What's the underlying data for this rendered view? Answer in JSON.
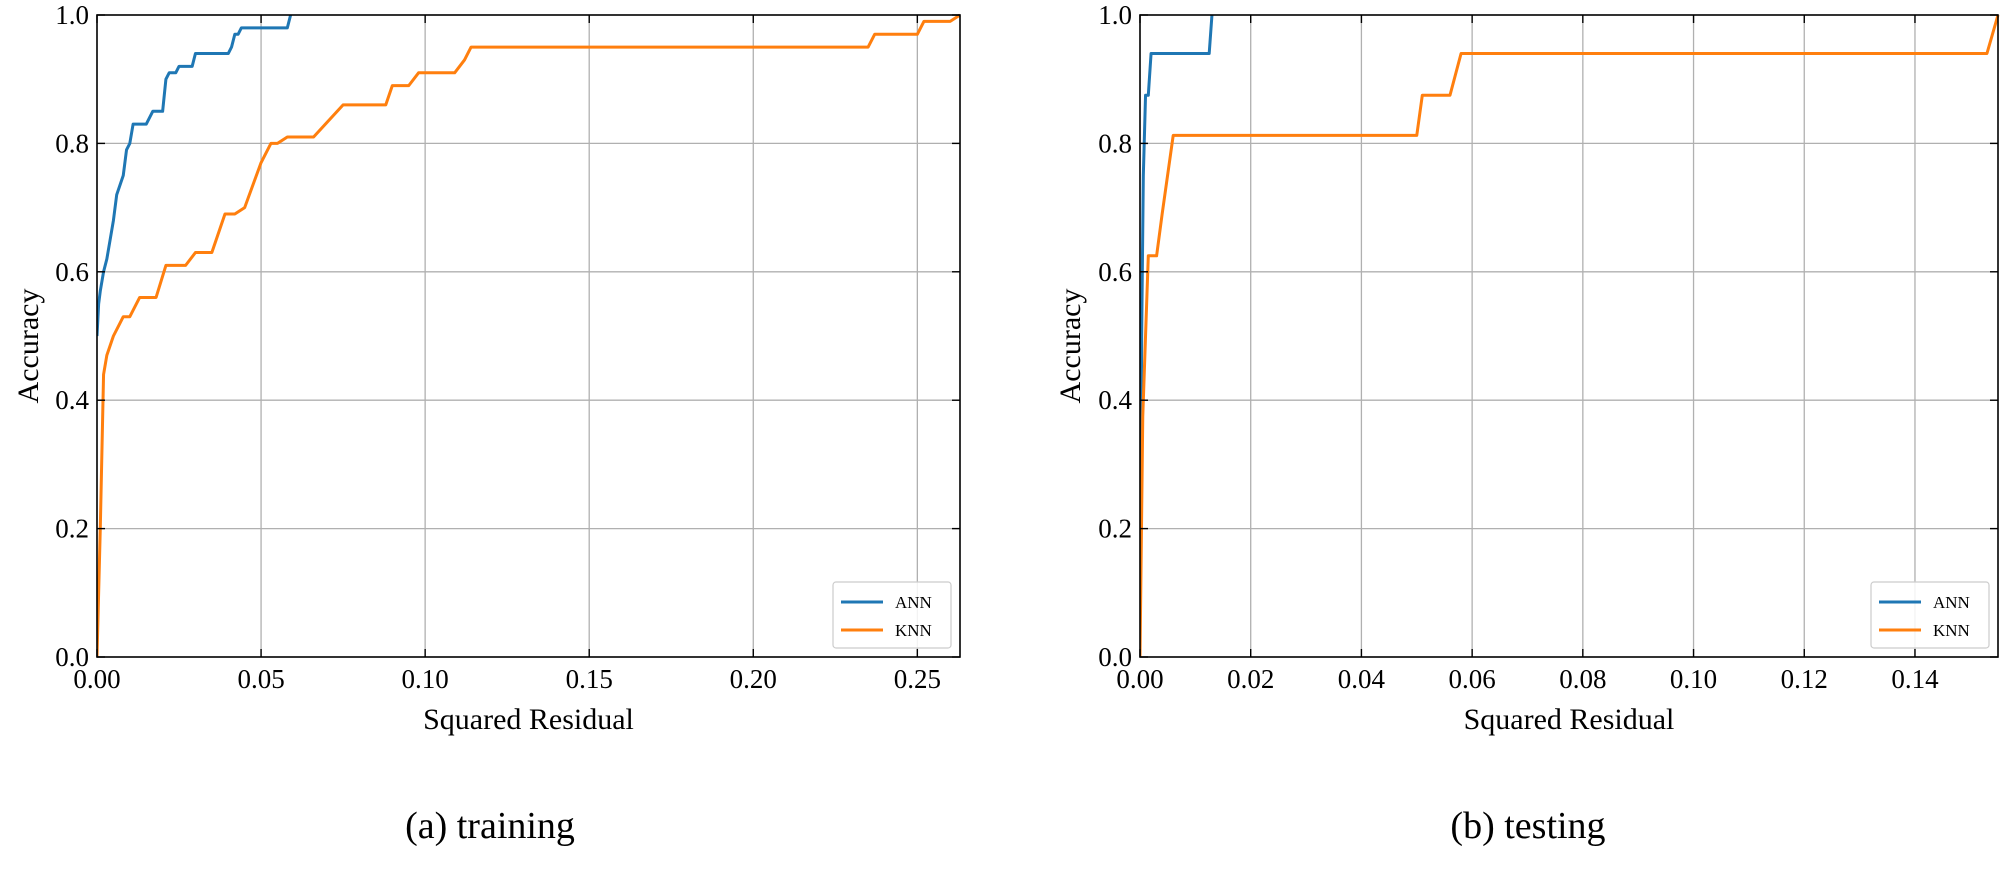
{
  "chart_data": [
    {
      "type": "line",
      "caption": "(a) training",
      "xlabel": "Squared Residual",
      "ylabel": "Accuracy",
      "xlim": [
        0,
        0.263
      ],
      "ylim": [
        0,
        1.0
      ],
      "xticks": [
        0.0,
        0.05,
        0.1,
        0.15,
        0.2,
        0.25
      ],
      "xtick_labels": [
        "0.00",
        "0.05",
        "0.10",
        "0.15",
        "0.20",
        "0.25"
      ],
      "yticks": [
        0.0,
        0.2,
        0.4,
        0.6,
        0.8,
        1.0
      ],
      "ytick_labels": [
        "0.0",
        "0.2",
        "0.4",
        "0.6",
        "0.8",
        "1.0"
      ],
      "grid": true,
      "legend_position": "bottom-right",
      "series": [
        {
          "name": "ANN",
          "color": "#1f77b4",
          "points": [
            [
              0,
              0.5
            ],
            [
              0.0005,
              0.55
            ],
            [
              0.001,
              0.57
            ],
            [
              0.002,
              0.6
            ],
            [
              0.003,
              0.62
            ],
            [
              0.004,
              0.65
            ],
            [
              0.005,
              0.68
            ],
            [
              0.006,
              0.72
            ],
            [
              0.008,
              0.75
            ],
            [
              0.009,
              0.79
            ],
            [
              0.01,
              0.8
            ],
            [
              0.011,
              0.83
            ],
            [
              0.015,
              0.83
            ],
            [
              0.017,
              0.85
            ],
            [
              0.02,
              0.85
            ],
            [
              0.021,
              0.9
            ],
            [
              0.022,
              0.91
            ],
            [
              0.024,
              0.91
            ],
            [
              0.025,
              0.92
            ],
            [
              0.029,
              0.92
            ],
            [
              0.03,
              0.94
            ],
            [
              0.04,
              0.94
            ],
            [
              0.041,
              0.95
            ],
            [
              0.042,
              0.97
            ],
            [
              0.043,
              0.97
            ],
            [
              0.044,
              0.98
            ],
            [
              0.058,
              0.98
            ],
            [
              0.059,
              1.0
            ]
          ]
        },
        {
          "name": "KNN",
          "color": "#ff7f0e",
          "points": [
            [
              0,
              0.0
            ],
            [
              0.001,
              0.2
            ],
            [
              0.002,
              0.44
            ],
            [
              0.003,
              0.47
            ],
            [
              0.005,
              0.5
            ],
            [
              0.007,
              0.52
            ],
            [
              0.008,
              0.53
            ],
            [
              0.01,
              0.53
            ],
            [
              0.013,
              0.56
            ],
            [
              0.018,
              0.56
            ],
            [
              0.021,
              0.61
            ],
            [
              0.027,
              0.61
            ],
            [
              0.03,
              0.63
            ],
            [
              0.035,
              0.63
            ],
            [
              0.039,
              0.69
            ],
            [
              0.042,
              0.69
            ],
            [
              0.045,
              0.7
            ],
            [
              0.05,
              0.77
            ],
            [
              0.053,
              0.8
            ],
            [
              0.055,
              0.8
            ],
            [
              0.058,
              0.81
            ],
            [
              0.066,
              0.81
            ],
            [
              0.075,
              0.86
            ],
            [
              0.088,
              0.86
            ],
            [
              0.09,
              0.89
            ],
            [
              0.095,
              0.89
            ],
            [
              0.098,
              0.91
            ],
            [
              0.109,
              0.91
            ],
            [
              0.112,
              0.93
            ],
            [
              0.114,
              0.95
            ],
            [
              0.235,
              0.95
            ],
            [
              0.237,
              0.97
            ],
            [
              0.25,
              0.97
            ],
            [
              0.252,
              0.99
            ],
            [
              0.26,
              0.99
            ],
            [
              0.263,
              1.0
            ]
          ]
        }
      ]
    },
    {
      "type": "line",
      "caption": "(b) testing",
      "xlabel": "Squared Residual",
      "ylabel": "Accuracy",
      "xlim": [
        0,
        0.155
      ],
      "ylim": [
        0,
        1.0
      ],
      "xticks": [
        0.0,
        0.02,
        0.04,
        0.06,
        0.08,
        0.1,
        0.12,
        0.14
      ],
      "xtick_labels": [
        "0.00",
        "0.02",
        "0.04",
        "0.06",
        "0.08",
        "0.10",
        "0.12",
        "0.14"
      ],
      "yticks": [
        0.0,
        0.2,
        0.4,
        0.6,
        0.8,
        1.0
      ],
      "ytick_labels": [
        "0.0",
        "0.2",
        "0.4",
        "0.6",
        "0.8",
        "1.0"
      ],
      "grid": true,
      "legend_position": "bottom-right",
      "series": [
        {
          "name": "ANN",
          "color": "#1f77b4",
          "points": [
            [
              0,
              0.06
            ],
            [
              0.0003,
              0.5
            ],
            [
              0.0006,
              0.75
            ],
            [
              0.001,
              0.875
            ],
            [
              0.0015,
              0.875
            ],
            [
              0.002,
              0.94
            ],
            [
              0.0125,
              0.94
            ],
            [
              0.013,
              1.0
            ]
          ]
        },
        {
          "name": "KNN",
          "color": "#ff7f0e",
          "points": [
            [
              0,
              0.0
            ],
            [
              0.0005,
              0.375
            ],
            [
              0.001,
              0.5
            ],
            [
              0.0015,
              0.625
            ],
            [
              0.003,
              0.625
            ],
            [
              0.004,
              0.69
            ],
            [
              0.006,
              0.8125
            ],
            [
              0.05,
              0.8125
            ],
            [
              0.051,
              0.875
            ],
            [
              0.056,
              0.875
            ],
            [
              0.058,
              0.94
            ],
            [
              0.153,
              0.94
            ],
            [
              0.155,
              1.0
            ]
          ]
        }
      ]
    }
  ]
}
